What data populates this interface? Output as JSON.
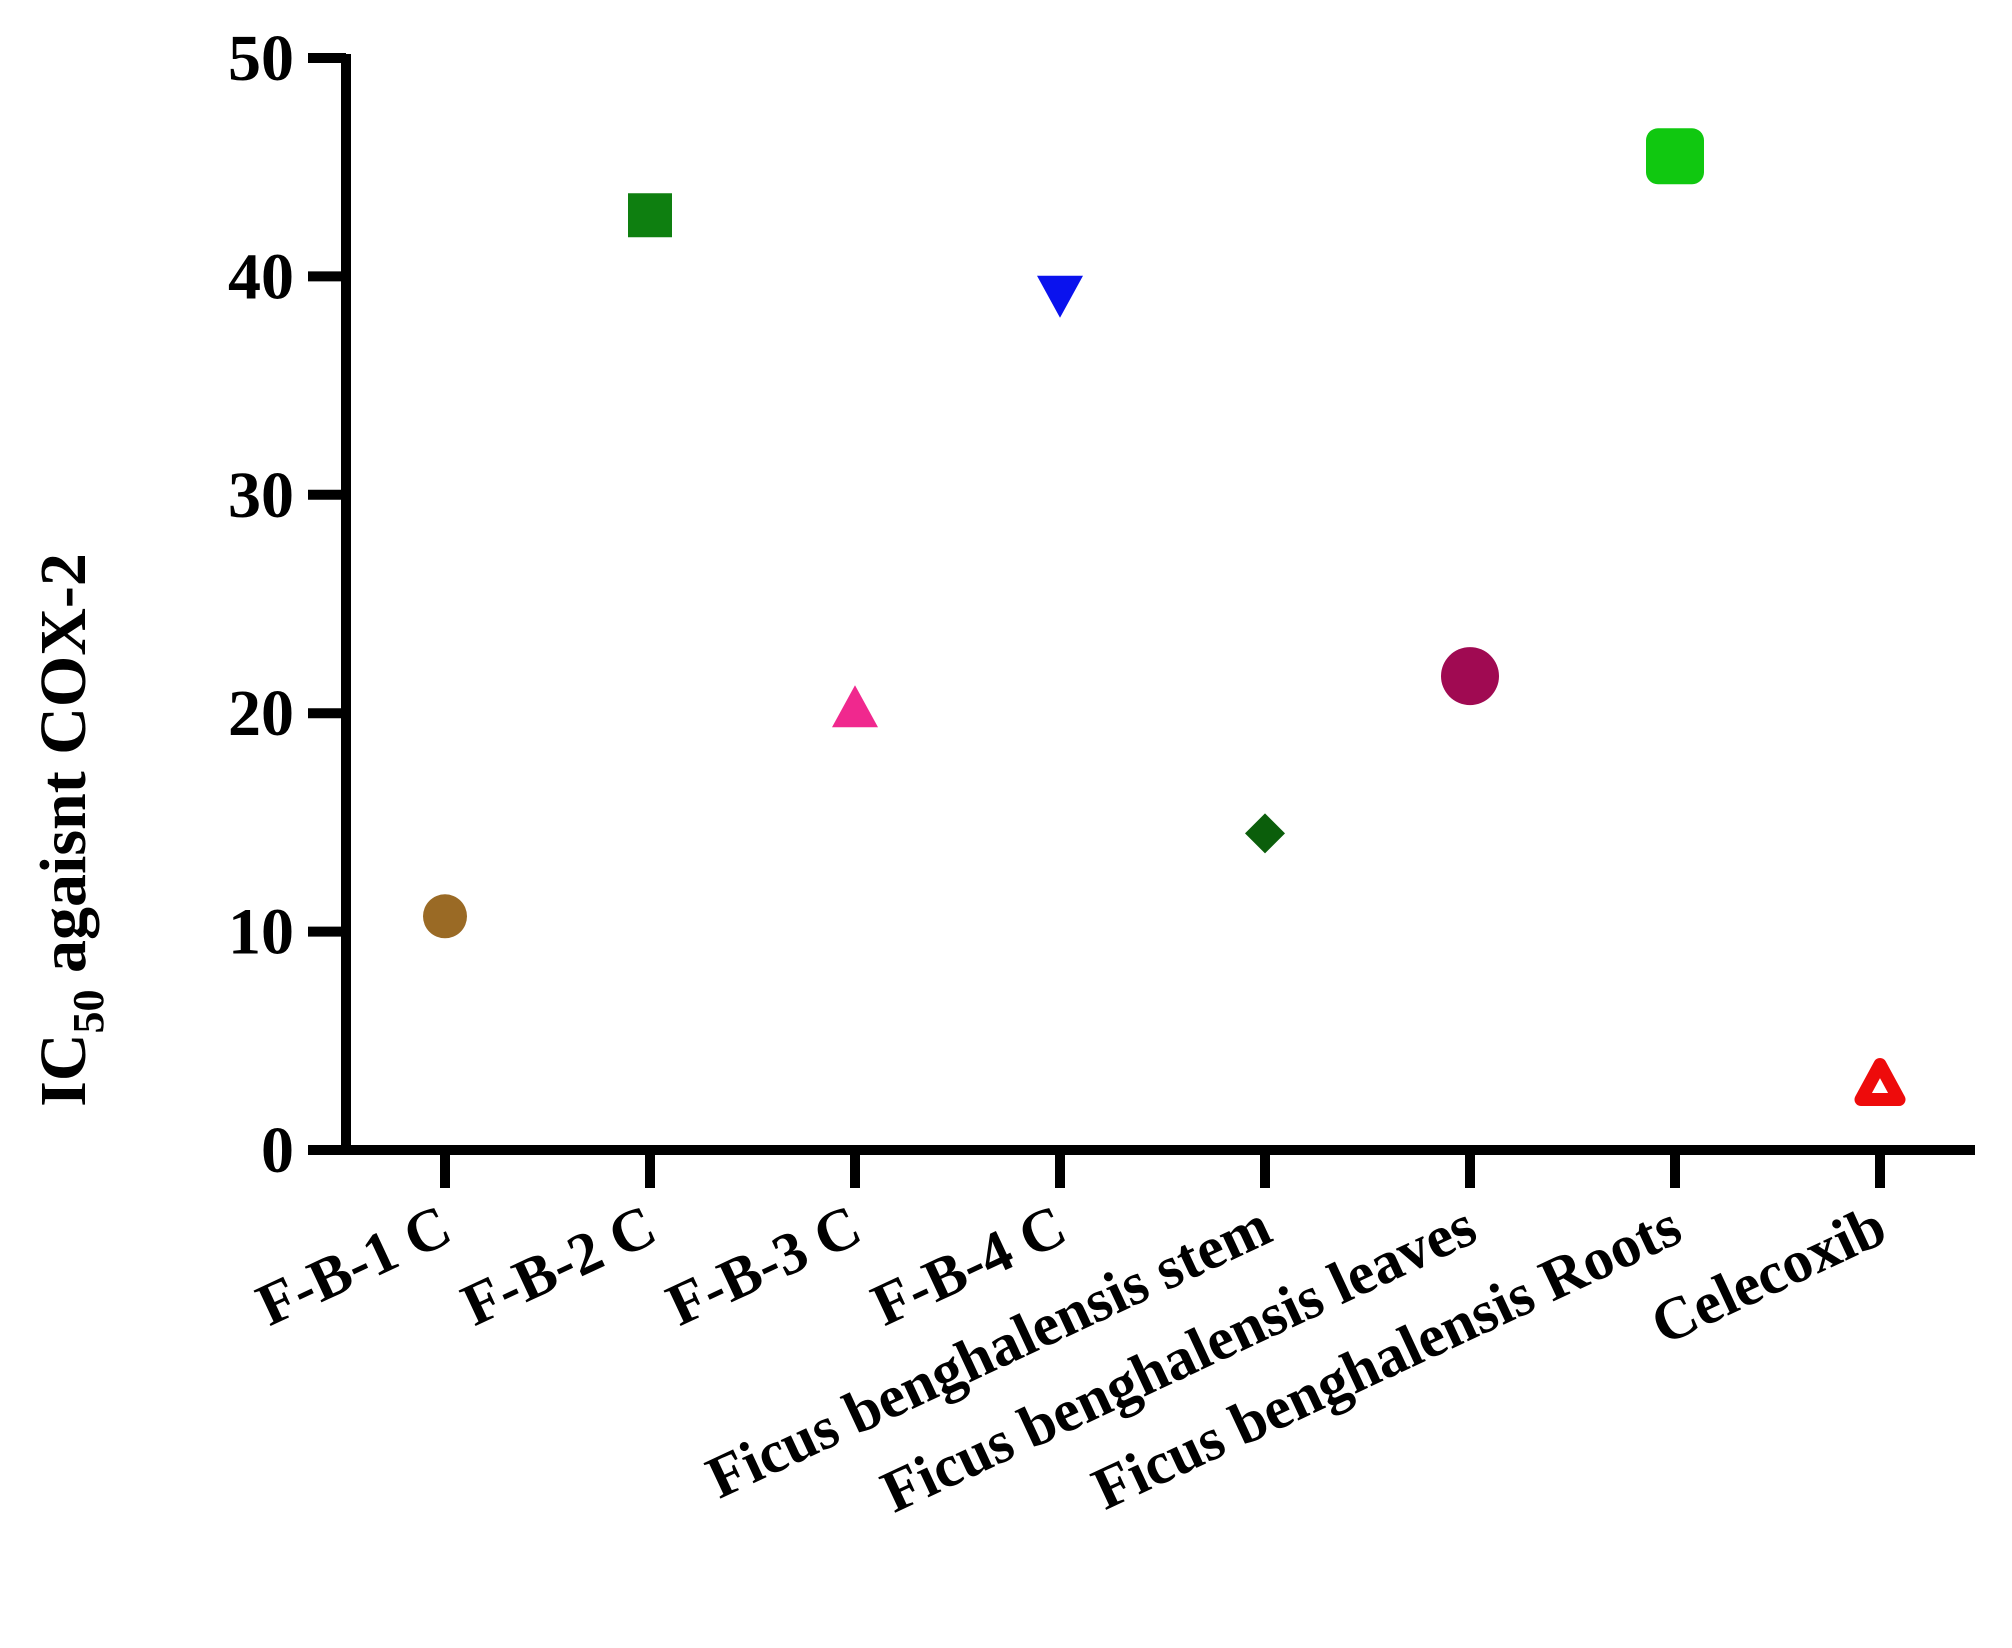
{
  "chart_data": {
    "type": "scatter",
    "title": "",
    "ylabel": {
      "main": "IC",
      "sub": "50",
      "rest": " agaisnt COX-2"
    },
    "xlabel": "",
    "ylim": [
      0,
      50
    ],
    "yticks": [
      0,
      10,
      20,
      30,
      40,
      50
    ],
    "ytick_labels": [
      "0",
      "10",
      "20",
      "30",
      "40",
      "50"
    ],
    "grid": false,
    "legend": "none",
    "categories": [
      "F-B-1 C",
      "F-B-2 C",
      "F-B-3 C",
      "F-B-4 C",
      "Ficus benghalensis stem",
      "Ficus benghalensis leaves",
      "Ficus benghalensis Roots",
      "Celecoxib"
    ],
    "points": [
      {
        "category": "F-B-1 C",
        "value": 10.7,
        "marker": "circle",
        "color": "#9A6A25"
      },
      {
        "category": "F-B-2 C",
        "value": 42.8,
        "marker": "square",
        "color": "#0E7F10"
      },
      {
        "category": "F-B-3 C",
        "value": 20.0,
        "marker": "triangle-up",
        "color": "#F0288E"
      },
      {
        "category": "F-B-4 C",
        "value": 39.3,
        "marker": "triangle-down",
        "color": "#0A12EE"
      },
      {
        "category": "Ficus benghalensis stem",
        "value": 14.5,
        "marker": "diamond",
        "color": "#0B5E0B"
      },
      {
        "category": "Ficus benghalensis leaves",
        "value": 21.7,
        "marker": "circle",
        "color": "#A00A52"
      },
      {
        "category": "Ficus benghalensis Roots",
        "value": 45.5,
        "marker": "rounded-square",
        "color": "#10C810"
      },
      {
        "category": "Celecoxib",
        "value": 3.0,
        "marker": "triangle-up-open",
        "color": "#EE0B0B"
      }
    ]
  }
}
